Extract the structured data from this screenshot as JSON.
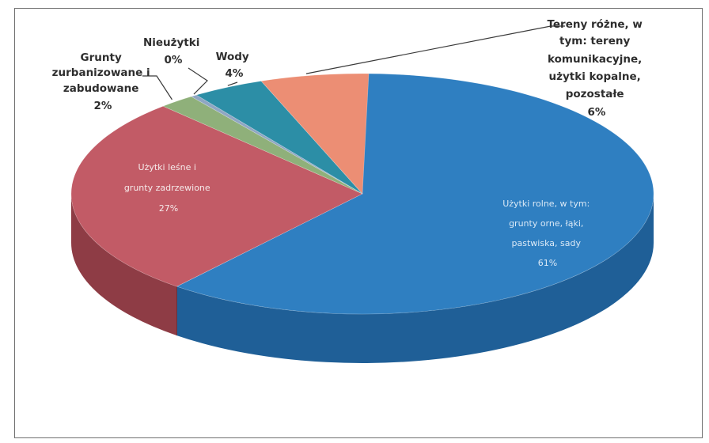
{
  "chart_data": {
    "type": "pie",
    "title": "",
    "slices": [
      {
        "label": "Użytki rolne, w tym: grunty orne, łąki, pastwiska, sady",
        "value": 61,
        "value_label": "61%",
        "color": "#2f7fc1",
        "side_color": "#1f5f97",
        "label_style": "inside-light"
      },
      {
        "label": "Użytki leśne i grunty zadrzewione",
        "value": 27,
        "value_label": "27%",
        "color": "#c25b66",
        "side_color": "#8e3c45",
        "label_style": "inside-light"
      },
      {
        "label": "Grunty zurbanizowane i zabudowane",
        "value": 2,
        "value_label": "2%",
        "color": "#8fb07a",
        "side_color": "#6c8c58",
        "label_style": "outside"
      },
      {
        "label": "Nieużytki",
        "value": 0,
        "value_label": "0%",
        "color": "#8fa6c3",
        "side_color": "#6c8299",
        "label_style": "outside"
      },
      {
        "label": "Wody",
        "value": 4,
        "value_label": "4%",
        "color": "#2c8ea6",
        "side_color": "#1f6b7e",
        "label_style": "outside"
      },
      {
        "label": "Tereny różne, w tym: tereny komunikacyjne, użytki kopalne, pozostałe",
        "value": 6,
        "value_label": "6%",
        "color": "#ec8e74",
        "side_color": "#b86a55",
        "label_style": "outside"
      }
    ],
    "legend": "none",
    "data_labels": "category and percentage"
  },
  "labels": {
    "rolne": [
      "Użytki rolne, w tym:",
      "grunty orne, łąki,",
      "pastwiska, sady",
      "61%"
    ],
    "lesne": [
      "Użytki leśne i",
      "grunty zadrzewione",
      "27%"
    ],
    "zurban": [
      "Grunty",
      "zurbanizowane i",
      "zabudowane",
      "2%"
    ],
    "nieuzytki": [
      "Nieużytki",
      "0%"
    ],
    "wody": [
      "Wody",
      "4%"
    ],
    "rozne": [
      "Tereny różne, w",
      "tym: tereny",
      "komunikacyjne,",
      "użytki kopalne,",
      "pozostałe",
      "6%"
    ]
  }
}
